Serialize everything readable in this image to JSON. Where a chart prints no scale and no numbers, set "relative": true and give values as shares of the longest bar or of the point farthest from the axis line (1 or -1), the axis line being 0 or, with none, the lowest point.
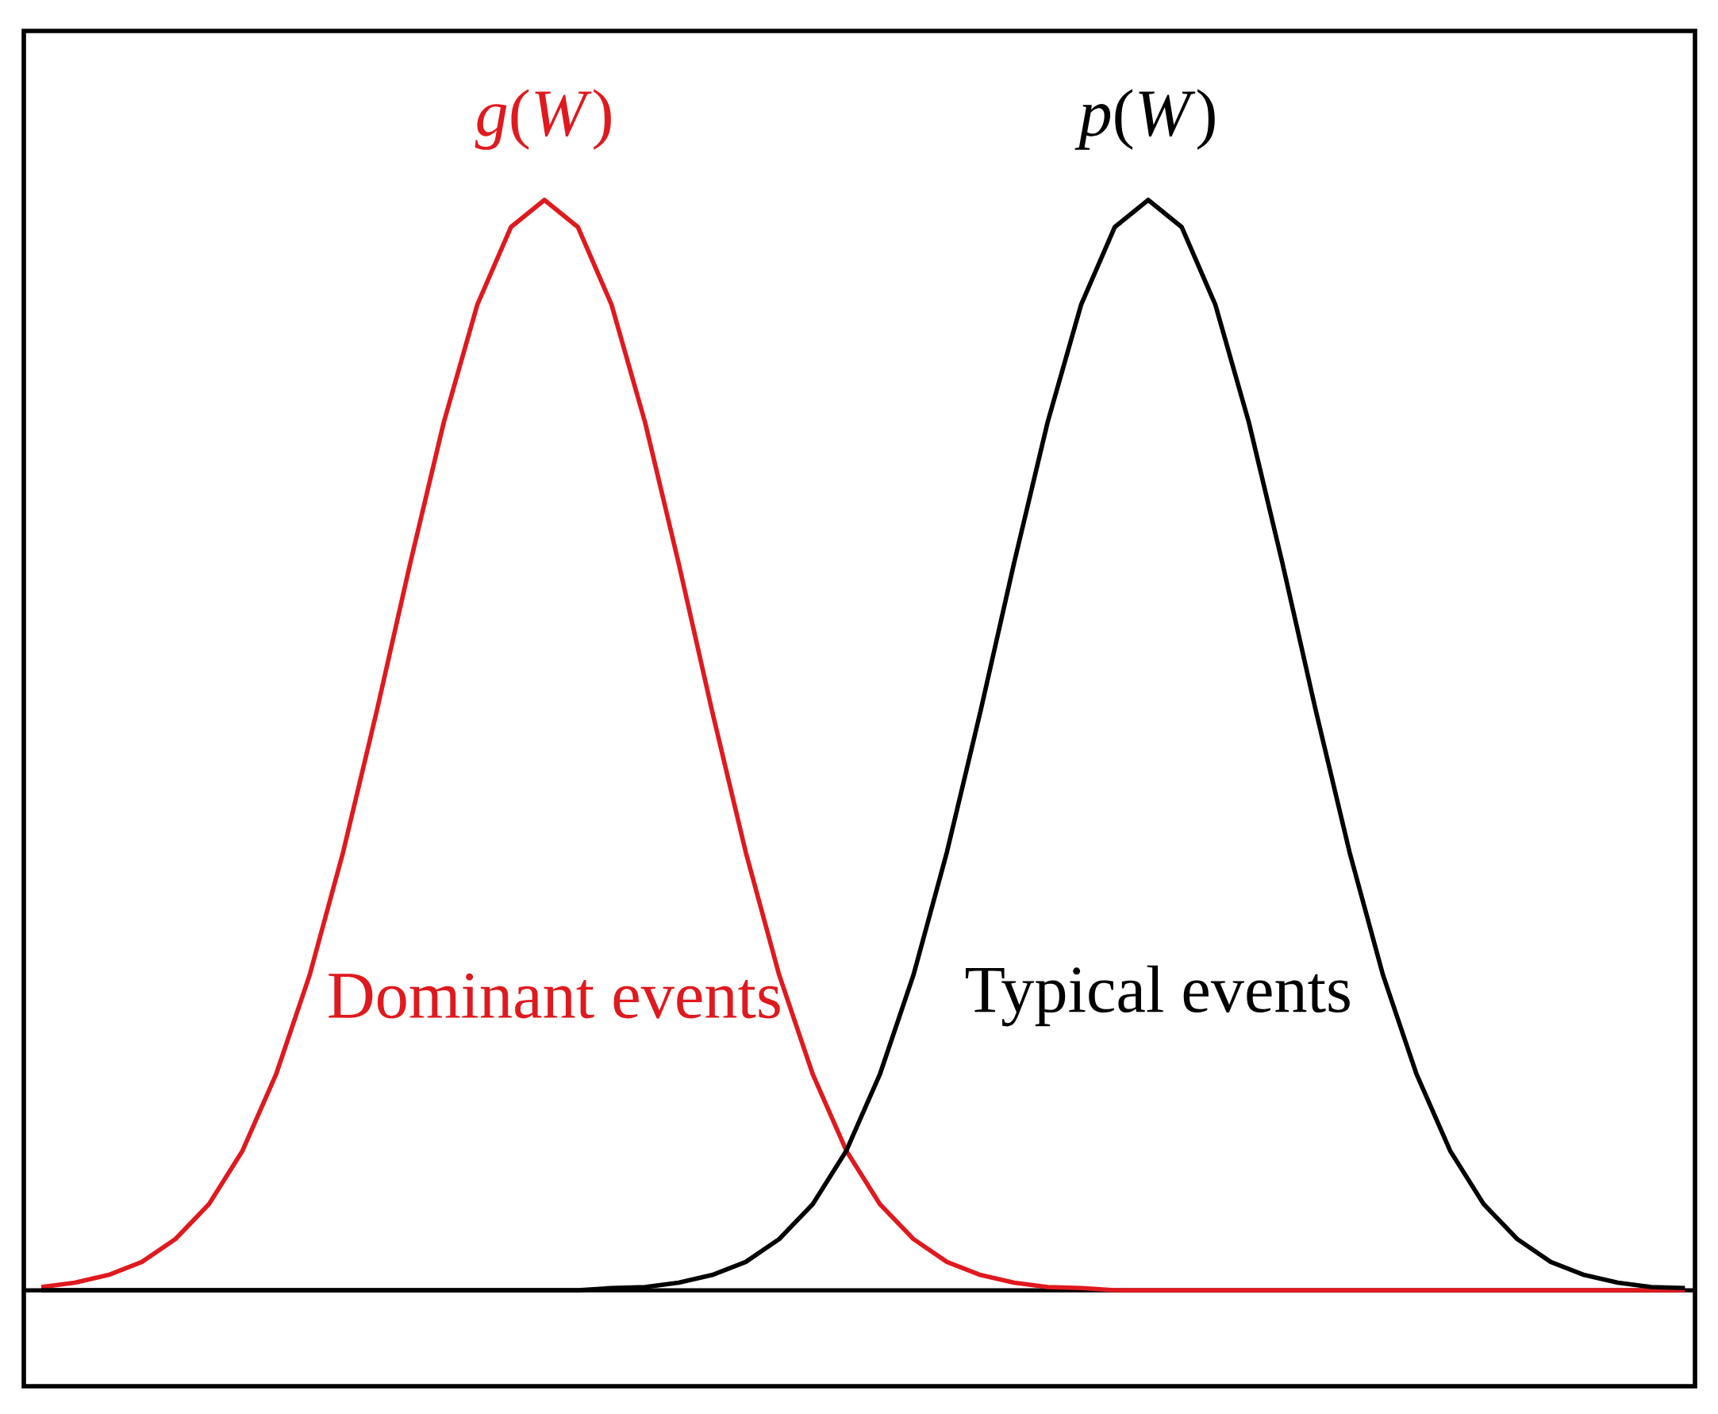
{
  "chart_data": {
    "type": "line",
    "relative": true,
    "categories": [
      null,
      null,
      null,
      null,
      null,
      null,
      null,
      null,
      null,
      null,
      null,
      null,
      null,
      null,
      null,
      null,
      null,
      null,
      null,
      null,
      null,
      null,
      null,
      null,
      null,
      null,
      null,
      null,
      null,
      null,
      null,
      null,
      null,
      null,
      null,
      null,
      null,
      null,
      null,
      null,
      null,
      null,
      null,
      null,
      null,
      null,
      null,
      null,
      null,
      null
    ],
    "series": [
      {
        "name": "*g*(*W*)",
        "color": "#e0191e",
        "values": [
          0.003,
          0.007,
          0.014,
          0.026,
          0.047,
          0.079,
          0.128,
          0.198,
          0.289,
          0.402,
          0.531,
          0.667,
          0.796,
          0.904,
          0.975,
          1,
          0.975,
          0.904,
          0.796,
          0.667,
          0.531,
          0.402,
          0.289,
          0.198,
          0.128,
          0.079,
          0.047,
          0.026,
          0.014,
          0.007,
          0.003,
          0.002,
          0,
          0,
          0,
          0,
          0,
          0,
          0,
          0,
          0,
          0,
          0,
          0,
          0,
          0,
          0,
          0,
          0,
          0
        ]
      },
      {
        "name": "*p*(*W*)",
        "color": "#000000",
        "values": [
          0,
          0,
          0,
          0,
          0,
          0,
          0,
          0,
          0,
          0,
          0,
          0,
          0,
          0,
          0,
          0,
          0,
          0.002,
          0.003,
          0.007,
          0.014,
          0.026,
          0.047,
          0.079,
          0.128,
          0.198,
          0.289,
          0.402,
          0.531,
          0.667,
          0.796,
          0.904,
          0.975,
          1,
          0.975,
          0.904,
          0.796,
          0.667,
          0.531,
          0.402,
          0.289,
          0.198,
          0.128,
          0.079,
          0.047,
          0.026,
          0.014,
          0.007,
          0.003,
          0.002
        ]
      }
    ],
    "annotations": [
      "Dominant events",
      "Typical events"
    ]
  }
}
